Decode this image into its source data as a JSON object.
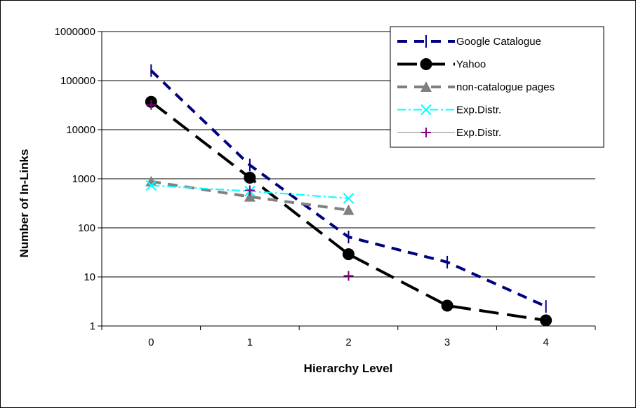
{
  "chart_data": {
    "type": "line",
    "title": "",
    "xlabel": "Hierarchy Level",
    "ylabel": "Number of In-Links",
    "y_scale": "log",
    "ylim": [
      1,
      1000000
    ],
    "xlim": [
      -0.5,
      4.5
    ],
    "x_ticks": [
      "0",
      "1",
      "2",
      "3",
      "4"
    ],
    "y_ticks": [
      "1",
      "10",
      "100",
      "1000",
      "10000",
      "100000",
      "1000000"
    ],
    "grid": "horizontal major gridlines",
    "legend_position": "top-right",
    "series": [
      {
        "name": "Google Catalogue",
        "color": "#000080",
        "line_style": "dashed",
        "marker": "dash",
        "x": [
          0,
          1,
          2,
          3,
          4
        ],
        "y": [
          160000,
          1900,
          65,
          20,
          2.5
        ]
      },
      {
        "name": "Yahoo",
        "color": "#000000",
        "line_style": "long-dash",
        "marker": "circle",
        "x": [
          0,
          1,
          2,
          3,
          4
        ],
        "y": [
          37000,
          1050,
          29,
          2.6,
          1.3
        ]
      },
      {
        "name": "non-catalogue pages",
        "color": "#808080",
        "line_style": "dashed",
        "marker": "triangle",
        "x": [
          0,
          1,
          2
        ],
        "y": [
          880,
          430,
          230
        ]
      },
      {
        "name": "Exp.Distr.",
        "color": "#00FFFF",
        "line_style": "dash-dot",
        "marker": "x",
        "x": [
          0,
          1,
          2
        ],
        "y": [
          730,
          560,
          400
        ]
      },
      {
        "name": "Exp.Distr.",
        "color": "#800080",
        "line_style": "none",
        "marker": "plus",
        "x": [
          0,
          1,
          2
        ],
        "y": [
          32000,
          580,
          10.5
        ]
      }
    ]
  }
}
